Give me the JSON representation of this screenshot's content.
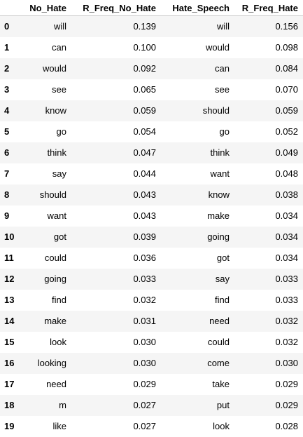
{
  "table": {
    "columns": [
      "",
      "No_Hate",
      "R_Freq_No_Hate",
      "Hate_Speech",
      "R_Freq_Hate"
    ],
    "rows": [
      {
        "index": "0",
        "no_hate": "will",
        "r_freq_no_hate": "0.139",
        "hate_speech": "will",
        "r_freq_hate": "0.156"
      },
      {
        "index": "1",
        "no_hate": "can",
        "r_freq_no_hate": "0.100",
        "hate_speech": "would",
        "r_freq_hate": "0.098"
      },
      {
        "index": "2",
        "no_hate": "would",
        "r_freq_no_hate": "0.092",
        "hate_speech": "can",
        "r_freq_hate": "0.084"
      },
      {
        "index": "3",
        "no_hate": "see",
        "r_freq_no_hate": "0.065",
        "hate_speech": "see",
        "r_freq_hate": "0.070"
      },
      {
        "index": "4",
        "no_hate": "know",
        "r_freq_no_hate": "0.059",
        "hate_speech": "should",
        "r_freq_hate": "0.059"
      },
      {
        "index": "5",
        "no_hate": "go",
        "r_freq_no_hate": "0.054",
        "hate_speech": "go",
        "r_freq_hate": "0.052"
      },
      {
        "index": "6",
        "no_hate": "think",
        "r_freq_no_hate": "0.047",
        "hate_speech": "think",
        "r_freq_hate": "0.049"
      },
      {
        "index": "7",
        "no_hate": "say",
        "r_freq_no_hate": "0.044",
        "hate_speech": "want",
        "r_freq_hate": "0.048"
      },
      {
        "index": "8",
        "no_hate": "should",
        "r_freq_no_hate": "0.043",
        "hate_speech": "know",
        "r_freq_hate": "0.038"
      },
      {
        "index": "9",
        "no_hate": "want",
        "r_freq_no_hate": "0.043",
        "hate_speech": "make",
        "r_freq_hate": "0.034"
      },
      {
        "index": "10",
        "no_hate": "got",
        "r_freq_no_hate": "0.039",
        "hate_speech": "going",
        "r_freq_hate": "0.034"
      },
      {
        "index": "11",
        "no_hate": "could",
        "r_freq_no_hate": "0.036",
        "hate_speech": "got",
        "r_freq_hate": "0.034"
      },
      {
        "index": "12",
        "no_hate": "going",
        "r_freq_no_hate": "0.033",
        "hate_speech": "say",
        "r_freq_hate": "0.033"
      },
      {
        "index": "13",
        "no_hate": "find",
        "r_freq_no_hate": "0.032",
        "hate_speech": "find",
        "r_freq_hate": "0.033"
      },
      {
        "index": "14",
        "no_hate": "make",
        "r_freq_no_hate": "0.031",
        "hate_speech": "need",
        "r_freq_hate": "0.032"
      },
      {
        "index": "15",
        "no_hate": "look",
        "r_freq_no_hate": "0.030",
        "hate_speech": "could",
        "r_freq_hate": "0.032"
      },
      {
        "index": "16",
        "no_hate": "looking",
        "r_freq_no_hate": "0.030",
        "hate_speech": "come",
        "r_freq_hate": "0.030"
      },
      {
        "index": "17",
        "no_hate": "need",
        "r_freq_no_hate": "0.029",
        "hate_speech": "take",
        "r_freq_hate": "0.029"
      },
      {
        "index": "18",
        "no_hate": "m",
        "r_freq_no_hate": "0.027",
        "hate_speech": "put",
        "r_freq_hate": "0.029"
      },
      {
        "index": "19",
        "no_hate": "like",
        "r_freq_no_hate": "0.027",
        "hate_speech": "look",
        "r_freq_hate": "0.028"
      }
    ]
  },
  "colors": {
    "stripe_odd": "#f5f5f5",
    "stripe_even": "#ffffff",
    "header_border": "#c9c9c9",
    "text": "#000000"
  }
}
